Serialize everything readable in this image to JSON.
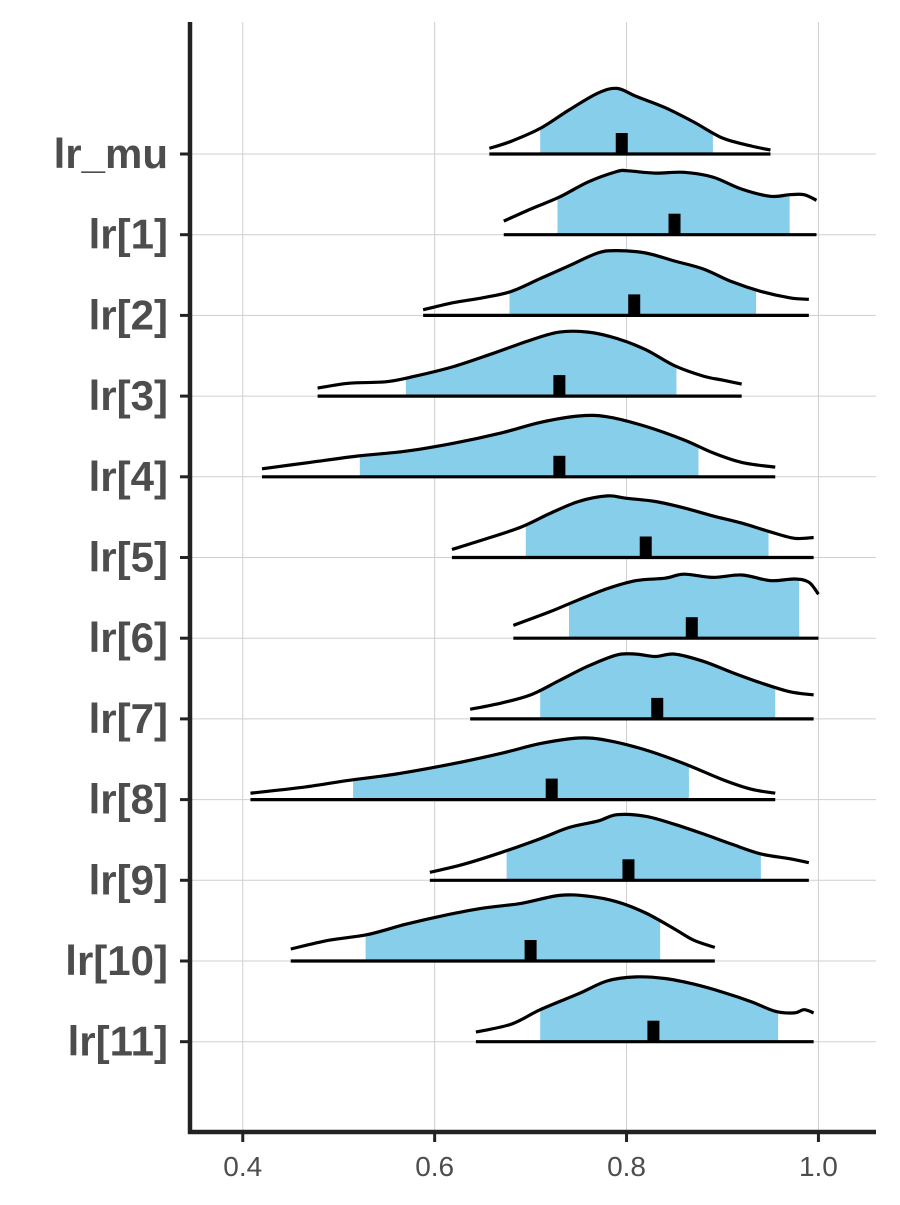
{
  "chart_data": {
    "type": "ridgeline",
    "title": "",
    "xlabel": "",
    "ylabel": "",
    "xlim": [
      0.345,
      1.06
    ],
    "x_ticks": [
      0.4,
      0.6,
      0.8,
      1.0
    ],
    "x_tick_labels": [
      "0.4",
      "0.6",
      "0.8",
      "1.0"
    ],
    "grid": true,
    "legend": "none",
    "fill_color": "#87ceeb",
    "line_color": "#000000",
    "series": [
      {
        "name": "lr_mu",
        "min": 0.657,
        "max": 0.95,
        "ci_low": 0.71,
        "ci_high": 0.89,
        "median": 0.795,
        "density": [
          [
            0.657,
            0.07
          ],
          [
            0.68,
            0.16
          ],
          [
            0.71,
            0.32
          ],
          [
            0.74,
            0.55
          ],
          [
            0.77,
            0.76
          ],
          [
            0.79,
            0.82
          ],
          [
            0.81,
            0.72
          ],
          [
            0.84,
            0.58
          ],
          [
            0.87,
            0.4
          ],
          [
            0.9,
            0.2
          ],
          [
            0.93,
            0.1
          ],
          [
            0.95,
            0.05
          ]
        ]
      },
      {
        "name": "lr[1]",
        "min": 0.672,
        "max": 0.998,
        "ci_low": 0.728,
        "ci_high": 0.97,
        "median": 0.85,
        "density": [
          [
            0.672,
            0.17
          ],
          [
            0.7,
            0.32
          ],
          [
            0.73,
            0.47
          ],
          [
            0.76,
            0.66
          ],
          [
            0.79,
            0.79
          ],
          [
            0.8,
            0.8
          ],
          [
            0.83,
            0.77
          ],
          [
            0.86,
            0.78
          ],
          [
            0.89,
            0.72
          ],
          [
            0.92,
            0.57
          ],
          [
            0.95,
            0.48
          ],
          [
            0.97,
            0.5
          ],
          [
            0.985,
            0.5
          ],
          [
            0.998,
            0.43
          ]
        ]
      },
      {
        "name": "lr[2]",
        "min": 0.588,
        "max": 0.99,
        "ci_low": 0.678,
        "ci_high": 0.935,
        "median": 0.808,
        "density": [
          [
            0.588,
            0.07
          ],
          [
            0.62,
            0.16
          ],
          [
            0.65,
            0.22
          ],
          [
            0.68,
            0.3
          ],
          [
            0.71,
            0.46
          ],
          [
            0.74,
            0.62
          ],
          [
            0.77,
            0.78
          ],
          [
            0.79,
            0.81
          ],
          [
            0.82,
            0.78
          ],
          [
            0.85,
            0.68
          ],
          [
            0.88,
            0.58
          ],
          [
            0.91,
            0.42
          ],
          [
            0.94,
            0.3
          ],
          [
            0.97,
            0.22
          ],
          [
            0.99,
            0.2
          ]
        ]
      },
      {
        "name": "lr[3]",
        "min": 0.478,
        "max": 0.92,
        "ci_low": 0.57,
        "ci_high": 0.852,
        "median": 0.73,
        "density": [
          [
            0.478,
            0.1
          ],
          [
            0.51,
            0.16
          ],
          [
            0.55,
            0.18
          ],
          [
            0.58,
            0.25
          ],
          [
            0.62,
            0.37
          ],
          [
            0.66,
            0.53
          ],
          [
            0.7,
            0.7
          ],
          [
            0.73,
            0.8
          ],
          [
            0.76,
            0.8
          ],
          [
            0.79,
            0.72
          ],
          [
            0.82,
            0.58
          ],
          [
            0.85,
            0.38
          ],
          [
            0.88,
            0.25
          ],
          [
            0.9,
            0.2
          ],
          [
            0.92,
            0.15
          ]
        ]
      },
      {
        "name": "lr[4]",
        "min": 0.42,
        "max": 0.955,
        "ci_low": 0.522,
        "ci_high": 0.875,
        "median": 0.73,
        "density": [
          [
            0.42,
            0.1
          ],
          [
            0.47,
            0.18
          ],
          [
            0.52,
            0.26
          ],
          [
            0.57,
            0.32
          ],
          [
            0.62,
            0.42
          ],
          [
            0.67,
            0.55
          ],
          [
            0.71,
            0.68
          ],
          [
            0.75,
            0.76
          ],
          [
            0.78,
            0.75
          ],
          [
            0.82,
            0.63
          ],
          [
            0.86,
            0.46
          ],
          [
            0.89,
            0.3
          ],
          [
            0.92,
            0.18
          ],
          [
            0.955,
            0.12
          ]
        ]
      },
      {
        "name": "lr[5]",
        "min": 0.618,
        "max": 0.995,
        "ci_low": 0.695,
        "ci_high": 0.948,
        "median": 0.82,
        "density": [
          [
            0.618,
            0.1
          ],
          [
            0.65,
            0.22
          ],
          [
            0.69,
            0.38
          ],
          [
            0.72,
            0.55
          ],
          [
            0.75,
            0.7
          ],
          [
            0.78,
            0.77
          ],
          [
            0.8,
            0.74
          ],
          [
            0.83,
            0.7
          ],
          [
            0.86,
            0.62
          ],
          [
            0.89,
            0.52
          ],
          [
            0.92,
            0.43
          ],
          [
            0.95,
            0.32
          ],
          [
            0.975,
            0.24
          ],
          [
            0.995,
            0.25
          ]
        ]
      },
      {
        "name": "lr[6]",
        "min": 0.682,
        "max": 1.0,
        "ci_low": 0.74,
        "ci_high": 0.98,
        "median": 0.868,
        "density": [
          [
            0.682,
            0.16
          ],
          [
            0.72,
            0.33
          ],
          [
            0.75,
            0.48
          ],
          [
            0.78,
            0.62
          ],
          [
            0.81,
            0.72
          ],
          [
            0.84,
            0.75
          ],
          [
            0.86,
            0.8
          ],
          [
            0.89,
            0.76
          ],
          [
            0.92,
            0.79
          ],
          [
            0.95,
            0.72
          ],
          [
            0.975,
            0.74
          ],
          [
            0.99,
            0.7
          ],
          [
            1.0,
            0.55
          ]
        ]
      },
      {
        "name": "lr[7]",
        "min": 0.637,
        "max": 0.995,
        "ci_low": 0.71,
        "ci_high": 0.955,
        "median": 0.832,
        "density": [
          [
            0.637,
            0.12
          ],
          [
            0.67,
            0.2
          ],
          [
            0.7,
            0.3
          ],
          [
            0.73,
            0.48
          ],
          [
            0.76,
            0.66
          ],
          [
            0.79,
            0.8
          ],
          [
            0.81,
            0.81
          ],
          [
            0.83,
            0.78
          ],
          [
            0.85,
            0.81
          ],
          [
            0.88,
            0.72
          ],
          [
            0.91,
            0.58
          ],
          [
            0.94,
            0.45
          ],
          [
            0.97,
            0.34
          ],
          [
            0.995,
            0.3
          ]
        ]
      },
      {
        "name": "lr[8]",
        "min": 0.408,
        "max": 0.955,
        "ci_low": 0.515,
        "ci_high": 0.865,
        "median": 0.722,
        "density": [
          [
            0.408,
            0.08
          ],
          [
            0.46,
            0.15
          ],
          [
            0.51,
            0.24
          ],
          [
            0.56,
            0.32
          ],
          [
            0.62,
            0.45
          ],
          [
            0.67,
            0.58
          ],
          [
            0.71,
            0.7
          ],
          [
            0.75,
            0.77
          ],
          [
            0.78,
            0.74
          ],
          [
            0.82,
            0.62
          ],
          [
            0.86,
            0.45
          ],
          [
            0.9,
            0.25
          ],
          [
            0.93,
            0.13
          ],
          [
            0.955,
            0.08
          ]
        ]
      },
      {
        "name": "lr[9]",
        "min": 0.595,
        "max": 0.99,
        "ci_low": 0.675,
        "ci_high": 0.94,
        "median": 0.802,
        "density": [
          [
            0.595,
            0.1
          ],
          [
            0.63,
            0.2
          ],
          [
            0.67,
            0.35
          ],
          [
            0.71,
            0.52
          ],
          [
            0.74,
            0.66
          ],
          [
            0.77,
            0.74
          ],
          [
            0.79,
            0.82
          ],
          [
            0.82,
            0.8
          ],
          [
            0.85,
            0.7
          ],
          [
            0.88,
            0.58
          ],
          [
            0.91,
            0.45
          ],
          [
            0.94,
            0.33
          ],
          [
            0.97,
            0.27
          ],
          [
            0.99,
            0.22
          ]
        ]
      },
      {
        "name": "lr[10]",
        "min": 0.45,
        "max": 0.892,
        "ci_low": 0.528,
        "ci_high": 0.835,
        "median": 0.7,
        "density": [
          [
            0.45,
            0.15
          ],
          [
            0.49,
            0.26
          ],
          [
            0.53,
            0.33
          ],
          [
            0.57,
            0.46
          ],
          [
            0.61,
            0.57
          ],
          [
            0.65,
            0.66
          ],
          [
            0.69,
            0.72
          ],
          [
            0.73,
            0.82
          ],
          [
            0.76,
            0.81
          ],
          [
            0.79,
            0.74
          ],
          [
            0.82,
            0.6
          ],
          [
            0.85,
            0.4
          ],
          [
            0.87,
            0.26
          ],
          [
            0.892,
            0.17
          ]
        ]
      },
      {
        "name": "lr[11]",
        "min": 0.643,
        "max": 0.995,
        "ci_low": 0.71,
        "ci_high": 0.958,
        "median": 0.828,
        "density": [
          [
            0.643,
            0.12
          ],
          [
            0.68,
            0.22
          ],
          [
            0.71,
            0.4
          ],
          [
            0.75,
            0.6
          ],
          [
            0.78,
            0.76
          ],
          [
            0.81,
            0.81
          ],
          [
            0.84,
            0.79
          ],
          [
            0.87,
            0.72
          ],
          [
            0.9,
            0.62
          ],
          [
            0.93,
            0.5
          ],
          [
            0.955,
            0.38
          ],
          [
            0.975,
            0.36
          ],
          [
            0.985,
            0.4
          ],
          [
            0.995,
            0.36
          ]
        ]
      }
    ]
  }
}
